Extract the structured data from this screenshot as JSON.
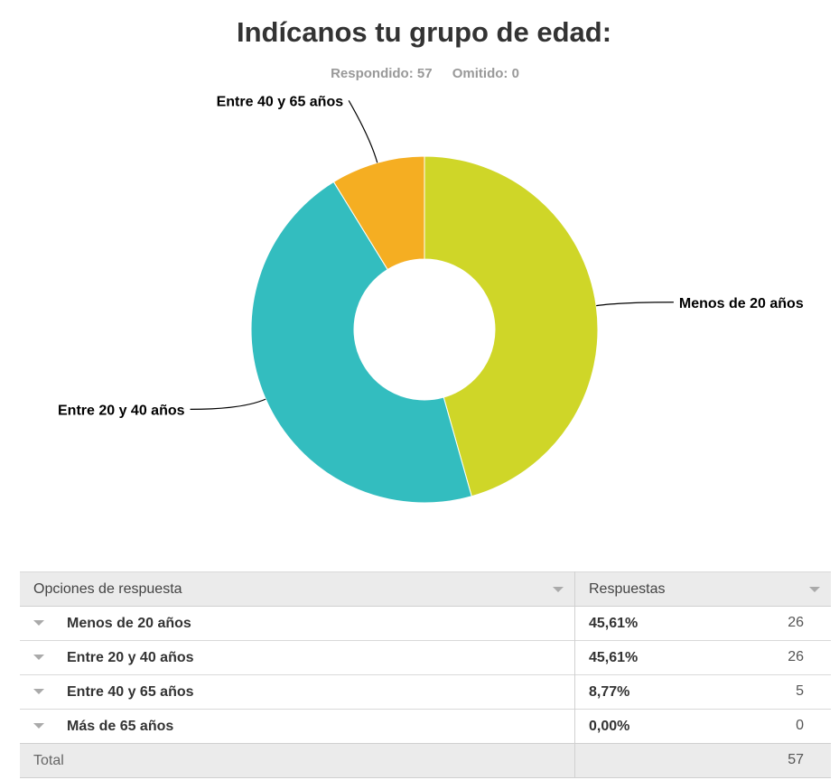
{
  "question": {
    "title": "Indícanos tu grupo de edad:",
    "answered_label": "Respondido: 57",
    "skipped_label": "Omitido: 0"
  },
  "chart_data": {
    "type": "pie",
    "donut": true,
    "labels": [
      "Menos de 20 años",
      "Entre 20 y 40 años",
      "Entre 40 y 65 años",
      "Más de 65 años"
    ],
    "values": [
      26,
      26,
      5,
      0
    ],
    "colors": [
      "#cfd628",
      "#33bdbf",
      "#f5ae22",
      "#999999"
    ]
  },
  "table": {
    "header": {
      "options": "Opciones de respuesta",
      "responses": "Respuestas"
    },
    "rows": [
      {
        "option": "Menos de 20 años",
        "percent": "45,61%",
        "count": "26"
      },
      {
        "option": "Entre 20 y 40 años",
        "percent": "45,61%",
        "count": "26"
      },
      {
        "option": "Entre 40 y 65 años",
        "percent": "8,77%",
        "count": "5"
      },
      {
        "option": "Más de 65 años",
        "percent": "0,00%",
        "count": "0"
      }
    ],
    "total_label": "Total",
    "total_value": "57"
  }
}
